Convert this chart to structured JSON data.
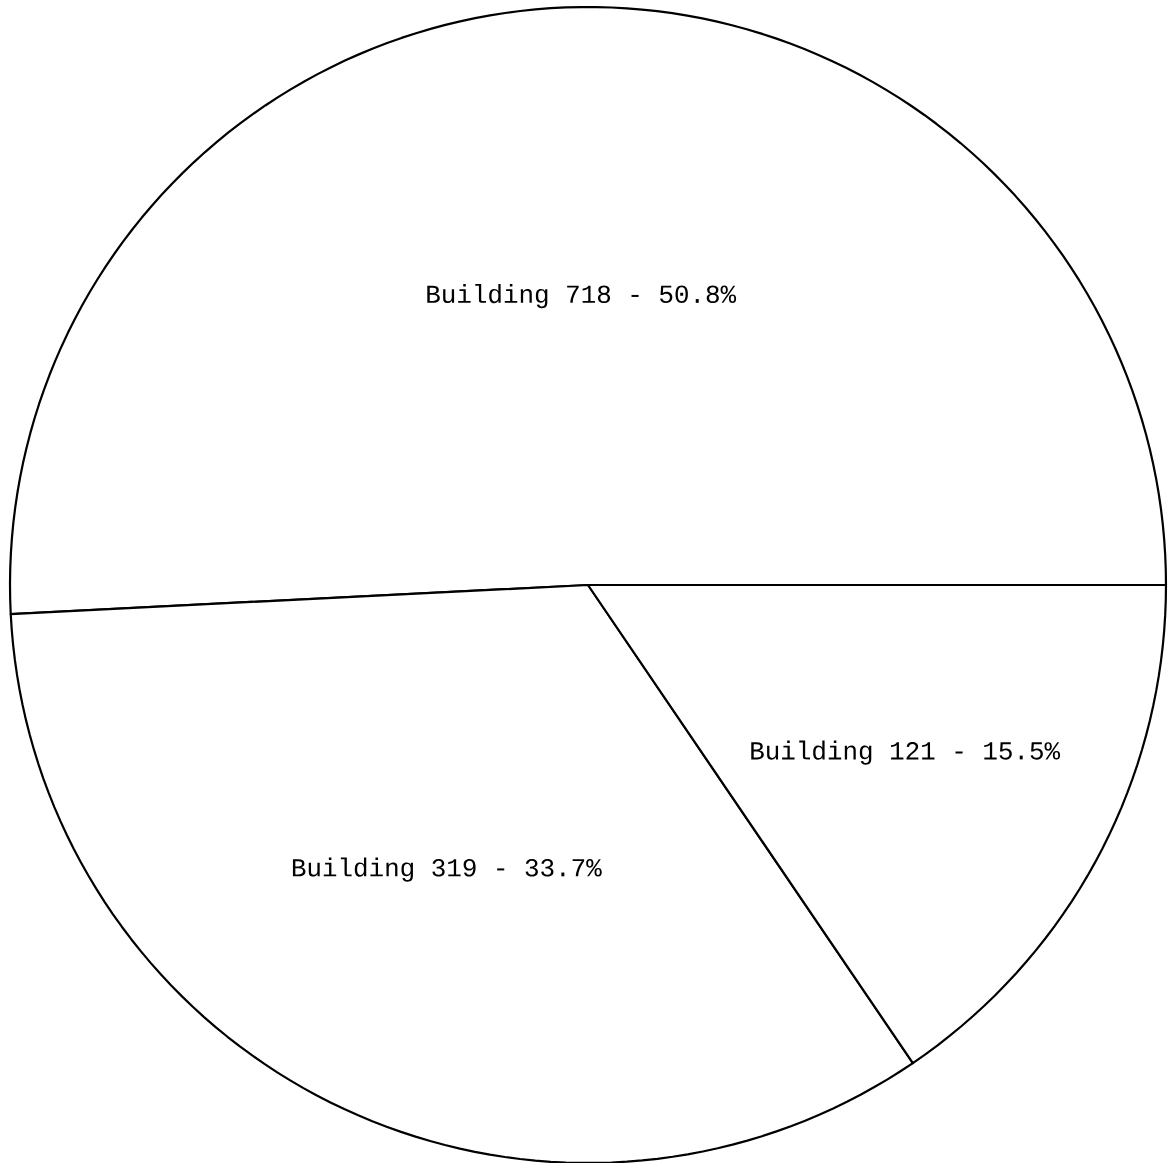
{
  "chart_data": {
    "type": "pie",
    "categories": [
      "Building 718 - 50.8%",
      "Building 319 - 33.7%",
      "Building 121 - 15.5%"
    ],
    "values": [
      50.8,
      33.7,
      15.5
    ],
    "colors": [
      "#ffffff",
      "#ffffff",
      "#ffffff"
    ]
  }
}
